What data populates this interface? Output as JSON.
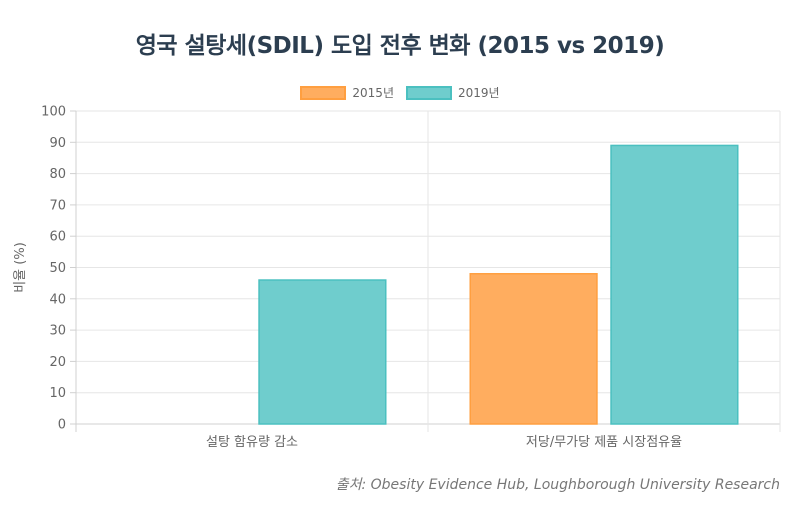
{
  "chart_data": {
    "type": "bar",
    "title": "영국 설탕세(SDIL) 도입 전후 변화 (2015 vs 2019)",
    "categories": [
      "설탕 함유량 감소",
      "저당/무가당 제품 시장점유율"
    ],
    "series": [
      {
        "name": "2015년",
        "values": [
          0,
          48
        ],
        "color": "#ffad5f",
        "border": "#ff9f40"
      },
      {
        "name": "2019년",
        "values": [
          46,
          89
        ],
        "color": "#6fcdcd",
        "border": "#4bc0c0"
      }
    ],
    "xlabel": "",
    "ylabel": "비율 (%)",
    "ylim": [
      0,
      100
    ],
    "yticks": [
      0,
      10,
      20,
      30,
      40,
      50,
      60,
      70,
      80,
      90,
      100
    ],
    "grid": true,
    "legend_position": "top-center"
  },
  "source": "출처: Obesity Evidence Hub, Loughborough University Research"
}
